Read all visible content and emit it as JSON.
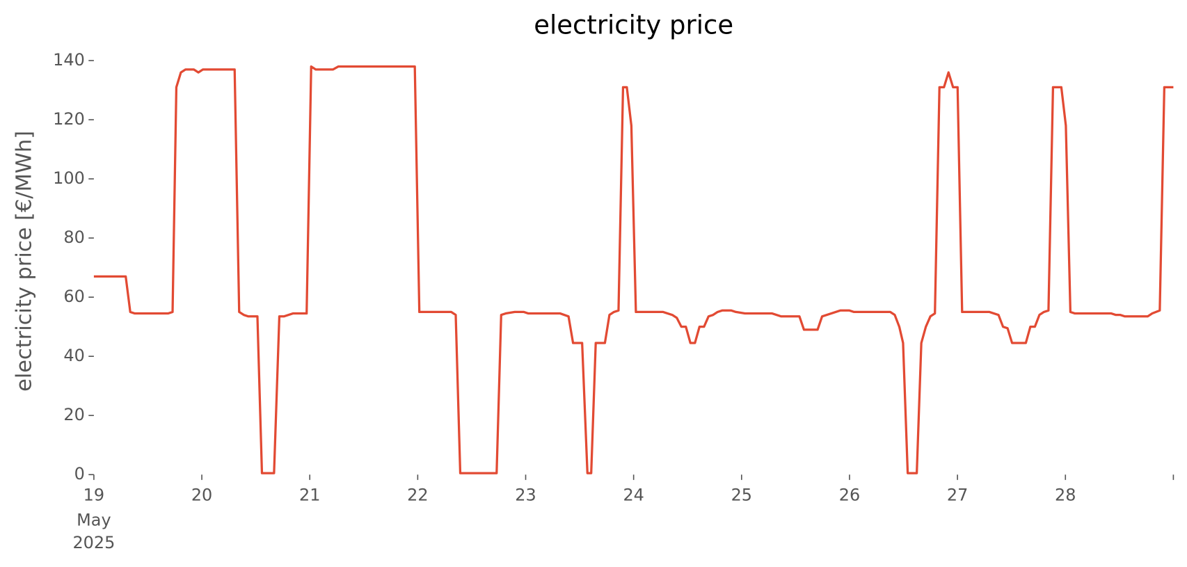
{
  "chart_data": {
    "type": "line",
    "title": "electricity price",
    "ylabel": "electricity price [€/MWh]",
    "x_sublabels": [
      "May",
      "2025"
    ],
    "color": "#E24A33",
    "xlim": [
      19,
      29
    ],
    "xticks": [
      19,
      20,
      21,
      22,
      23,
      24,
      25,
      26,
      27,
      28,
      {
        "value": 29,
        "label": null
      }
    ],
    "ylim": [
      0,
      140
    ],
    "yticks": [
      0,
      20,
      40,
      60,
      80,
      100,
      120,
      140
    ],
    "grid": false,
    "x": [
      19,
      19.295,
      19.337,
      19.379,
      19.687,
      19.729,
      19.764,
      19.806,
      19.849,
      19.926,
      19.968,
      20.01,
      20.304,
      20.346,
      20.389,
      20.431,
      20.515,
      20.557,
      20.669,
      20.718,
      20.76,
      20.844,
      20.971,
      21.013,
      21.055,
      21.216,
      21.265,
      21.973,
      22.015,
      22.31,
      22.352,
      22.394,
      22.731,
      22.773,
      22.815,
      22.899,
      22.983,
      23.025,
      23.32,
      23.397,
      23.439,
      23.523,
      23.572,
      23.607,
      23.649,
      23.734,
      23.776,
      23.818,
      23.86,
      23.902,
      23.937,
      23.979,
      24.021,
      24.273,
      24.358,
      24.4,
      24.442,
      24.484,
      24.526,
      24.568,
      24.61,
      24.652,
      24.694,
      24.736,
      24.778,
      24.82,
      24.905,
      24.947,
      25.031,
      25.283,
      25.367,
      25.536,
      25.578,
      25.704,
      25.746,
      25.83,
      25.914,
      25.999,
      26.041,
      26.377,
      26.419,
      26.461,
      26.496,
      26.539,
      26.623,
      26.665,
      26.707,
      26.749,
      26.791,
      26.833,
      26.875,
      26.917,
      26.959,
      27.001,
      27.043,
      27.296,
      27.338,
      27.38,
      27.422,
      27.464,
      27.506,
      27.633,
      27.675,
      27.717,
      27.759,
      27.801,
      27.843,
      27.885,
      27.962,
      28.004,
      28.046,
      28.088,
      28.425,
      28.467,
      28.509,
      28.551,
      28.762,
      28.804,
      28.874,
      28.916,
      29.0
    ],
    "values": [
      67,
      67,
      55,
      54.5,
      54.5,
      55,
      131,
      136,
      137,
      137,
      136,
      137,
      137,
      55,
      54,
      53.5,
      53.5,
      0.5,
      0.5,
      53.5,
      53.5,
      54.5,
      54.5,
      138,
      137,
      137,
      138,
      138,
      55,
      55,
      54,
      0.5,
      0.5,
      54,
      54.5,
      55,
      55,
      54.5,
      54.5,
      53.5,
      44.5,
      44.5,
      0.5,
      0.5,
      44.5,
      44.5,
      54,
      55,
      55.5,
      131,
      131,
      118,
      55,
      55,
      54,
      53,
      50,
      50,
      44.5,
      44.5,
      50,
      50,
      53.5,
      54,
      55,
      55.5,
      55.5,
      55,
      54.5,
      54.5,
      53.5,
      53.5,
      49,
      49,
      53.5,
      54.5,
      55.5,
      55.5,
      55,
      55,
      54,
      50,
      44.5,
      0.5,
      0.5,
      44.5,
      50,
      53.5,
      54.5,
      131,
      131,
      136,
      131,
      131,
      55,
      55,
      54.5,
      54,
      50,
      49.5,
      44.5,
      44.5,
      50,
      50,
      54,
      55,
      55.5,
      131,
      131,
      118,
      55,
      54.5,
      54.5,
      54,
      54,
      53.5,
      53.5,
      54.5,
      55.5,
      131,
      131
    ]
  }
}
